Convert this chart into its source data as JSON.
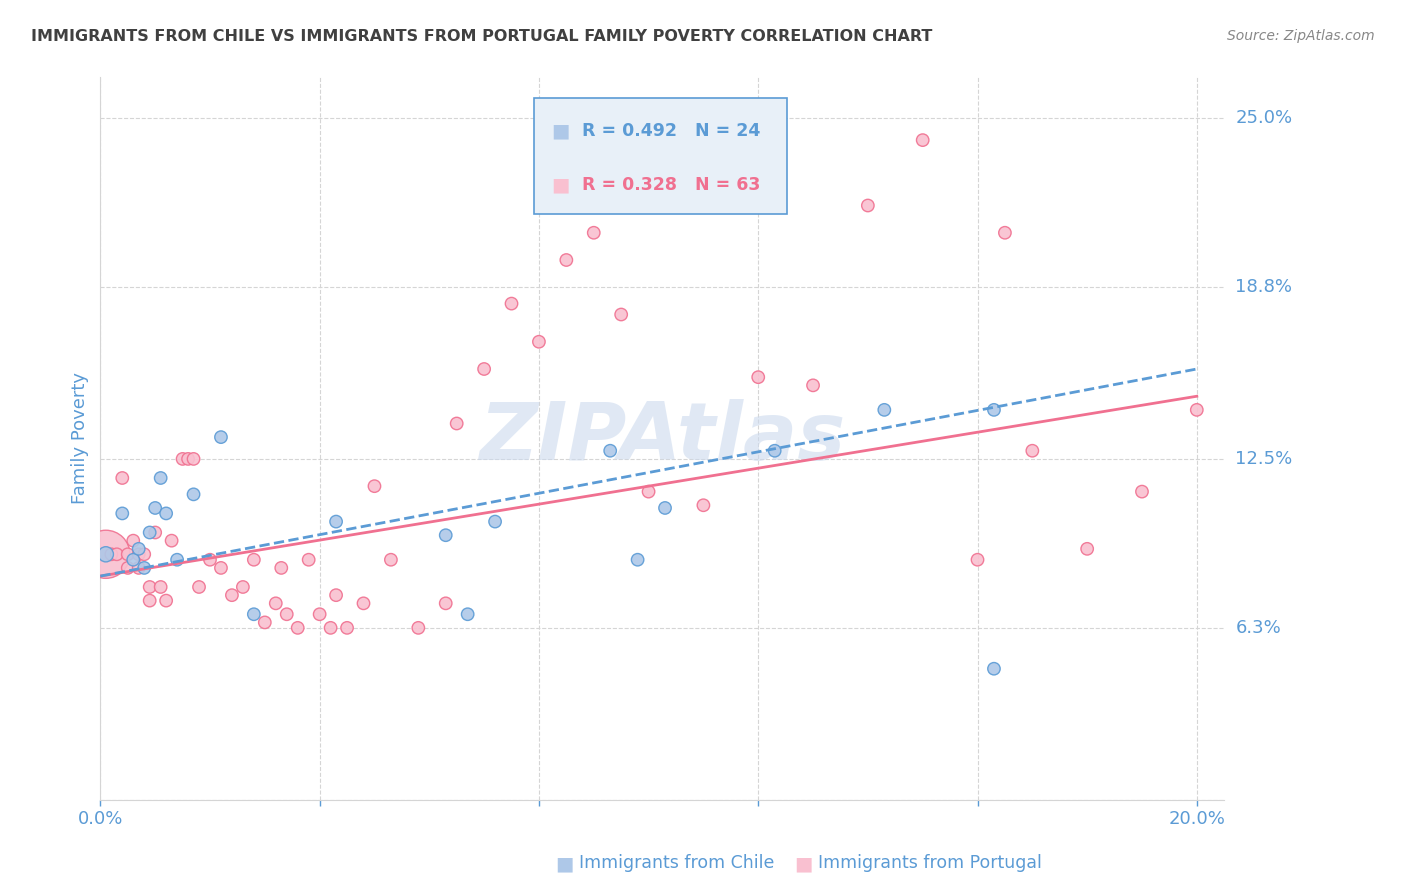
{
  "title": "IMMIGRANTS FROM CHILE VS IMMIGRANTS FROM PORTUGAL FAMILY POVERTY CORRELATION CHART",
  "source": "Source: ZipAtlas.com",
  "ylabel": "Family Poverty",
  "xlim": [
    0.0,
    0.205
  ],
  "ylim": [
    0.0,
    0.265
  ],
  "yticks": [
    0.0,
    0.063,
    0.125,
    0.188,
    0.25
  ],
  "ytick_labels": [
    "",
    "6.3%",
    "12.5%",
    "18.8%",
    "25.0%"
  ],
  "xticks": [
    0.0,
    0.04,
    0.08,
    0.12,
    0.16,
    0.2
  ],
  "xtick_labels": [
    "0.0%",
    "",
    "",
    "",
    "",
    "20.0%"
  ],
  "watermark": "ZIPAtlas",
  "chile_color": "#aec8e8",
  "chile_edge_color": "#5b9bd5",
  "portugal_color": "#f9c0d0",
  "portugal_edge_color": "#f07090",
  "chile_R": 0.492,
  "chile_N": 24,
  "portugal_R": 0.328,
  "portugal_N": 63,
  "chile_scatter_x": [
    0.001,
    0.004,
    0.006,
    0.007,
    0.008,
    0.009,
    0.01,
    0.011,
    0.012,
    0.014,
    0.017,
    0.022,
    0.028,
    0.043,
    0.063,
    0.067,
    0.072,
    0.093,
    0.098,
    0.103,
    0.123,
    0.143,
    0.163,
    0.163
  ],
  "chile_scatter_y": [
    0.09,
    0.105,
    0.088,
    0.092,
    0.085,
    0.098,
    0.107,
    0.118,
    0.105,
    0.088,
    0.112,
    0.133,
    0.068,
    0.102,
    0.097,
    0.068,
    0.102,
    0.128,
    0.088,
    0.107,
    0.128,
    0.143,
    0.143,
    0.048
  ],
  "chile_scatter_sizes": [
    120,
    80,
    80,
    80,
    80,
    80,
    80,
    80,
    80,
    80,
    80,
    80,
    80,
    80,
    80,
    80,
    80,
    80,
    80,
    80,
    80,
    80,
    80,
    80
  ],
  "portugal_scatter_x": [
    0.001,
    0.002,
    0.003,
    0.004,
    0.005,
    0.005,
    0.006,
    0.007,
    0.007,
    0.008,
    0.009,
    0.009,
    0.01,
    0.011,
    0.012,
    0.013,
    0.015,
    0.016,
    0.017,
    0.018,
    0.02,
    0.022,
    0.024,
    0.026,
    0.028,
    0.03,
    0.032,
    0.033,
    0.034,
    0.036,
    0.038,
    0.04,
    0.042,
    0.043,
    0.045,
    0.048,
    0.05,
    0.053,
    0.058,
    0.063,
    0.065,
    0.07,
    0.075,
    0.08,
    0.085,
    0.09,
    0.095,
    0.1,
    0.11,
    0.12,
    0.13,
    0.14,
    0.15,
    0.16,
    0.165,
    0.17,
    0.18,
    0.19,
    0.2
  ],
  "portugal_scatter_y": [
    0.09,
    0.09,
    0.09,
    0.118,
    0.085,
    0.09,
    0.095,
    0.085,
    0.09,
    0.09,
    0.073,
    0.078,
    0.098,
    0.078,
    0.073,
    0.095,
    0.125,
    0.125,
    0.125,
    0.078,
    0.088,
    0.085,
    0.075,
    0.078,
    0.088,
    0.065,
    0.072,
    0.085,
    0.068,
    0.063,
    0.088,
    0.068,
    0.063,
    0.075,
    0.063,
    0.072,
    0.115,
    0.088,
    0.063,
    0.072,
    0.138,
    0.158,
    0.182,
    0.168,
    0.198,
    0.208,
    0.178,
    0.113,
    0.108,
    0.155,
    0.152,
    0.218,
    0.242,
    0.088,
    0.208,
    0.128,
    0.092,
    0.113,
    0.143
  ],
  "portugal_scatter_sizes": [
    1200,
    80,
    80,
    80,
    80,
    80,
    80,
    80,
    80,
    80,
    80,
    80,
    80,
    80,
    80,
    80,
    80,
    80,
    80,
    80,
    80,
    80,
    80,
    80,
    80,
    80,
    80,
    80,
    80,
    80,
    80,
    80,
    80,
    80,
    80,
    80,
    80,
    80,
    80,
    80,
    80,
    80,
    80,
    80,
    80,
    80,
    80,
    80,
    80,
    80,
    80,
    80,
    80,
    80,
    80,
    80,
    80,
    80,
    80
  ],
  "chile_line_x": [
    0.0,
    0.2
  ],
  "chile_line_y": [
    0.082,
    0.158
  ],
  "portugal_line_x": [
    0.0,
    0.2
  ],
  "portugal_line_y": [
    0.082,
    0.148
  ],
  "grid_color": "#d5d5d5",
  "title_color": "#404040",
  "axis_color": "#5b9bd5",
  "source_color": "#888888",
  "watermark_color": "#ccdaee",
  "legend_box_color": "#e8f0f8",
  "legend_border_color": "#5b9bd5",
  "background_color": "#ffffff"
}
